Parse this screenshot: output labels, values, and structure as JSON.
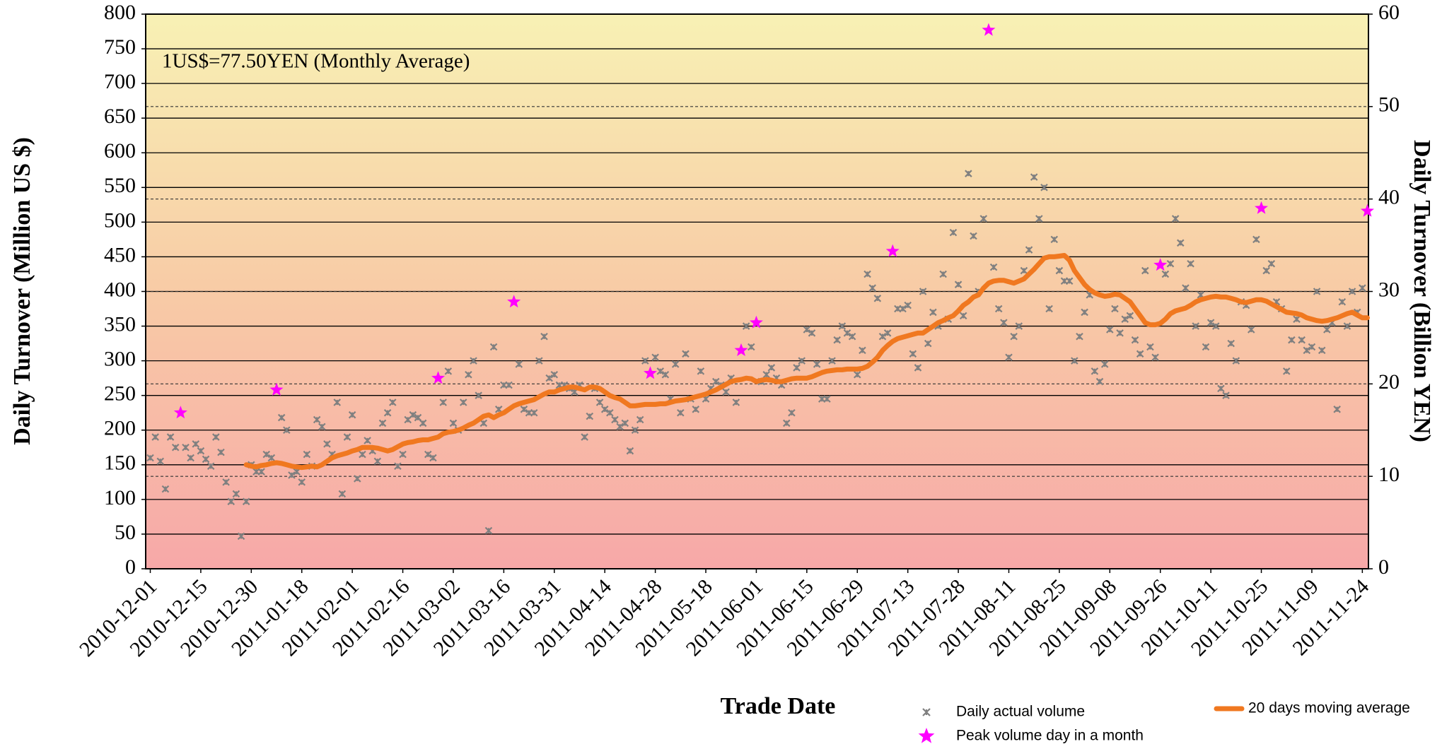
{
  "chart_data": {
    "type": "combo",
    "x_label": "Trade Date",
    "y_label": "Daily Turnover (Million US $)",
    "y2_label": "Daily Turnover (Billion YEN)",
    "annotation": "1US$=77.50YEN (Monthly Average)",
    "categories": [
      "2010-12-01",
      null,
      null,
      null,
      null,
      null,
      null,
      null,
      null,
      null,
      "2010-12-15",
      null,
      null,
      null,
      null,
      null,
      null,
      null,
      null,
      null,
      "2010-12-30",
      null,
      null,
      null,
      null,
      null,
      null,
      null,
      null,
      null,
      "2011-01-18",
      null,
      null,
      null,
      null,
      null,
      null,
      null,
      null,
      null,
      "2011-02-01",
      null,
      null,
      null,
      null,
      null,
      null,
      null,
      null,
      null,
      "2011-02-16",
      null,
      null,
      null,
      null,
      null,
      null,
      null,
      null,
      null,
      "2011-03-02",
      null,
      null,
      null,
      null,
      null,
      null,
      null,
      null,
      null,
      "2011-03-16",
      null,
      null,
      null,
      null,
      null,
      null,
      null,
      null,
      null,
      "2011-03-31",
      null,
      null,
      null,
      null,
      null,
      null,
      null,
      null,
      null,
      "2011-04-14",
      null,
      null,
      null,
      null,
      null,
      null,
      null,
      null,
      null,
      "2011-04-28",
      null,
      null,
      null,
      null,
      null,
      null,
      null,
      null,
      null,
      "2011-05-18",
      null,
      null,
      null,
      null,
      null,
      null,
      null,
      null,
      null,
      "2011-06-01",
      null,
      null,
      null,
      null,
      null,
      null,
      null,
      null,
      null,
      "2011-06-15",
      null,
      null,
      null,
      null,
      null,
      null,
      null,
      null,
      null,
      "2011-06-29",
      null,
      null,
      null,
      null,
      null,
      null,
      null,
      null,
      null,
      "2011-07-13",
      null,
      null,
      null,
      null,
      null,
      null,
      null,
      null,
      null,
      "2011-07-28",
      null,
      null,
      null,
      null,
      null,
      null,
      null,
      null,
      null,
      "2011-08-11",
      null,
      null,
      null,
      null,
      null,
      null,
      null,
      null,
      null,
      "2011-08-25",
      null,
      null,
      null,
      null,
      null,
      null,
      null,
      null,
      null,
      "2011-09-08",
      null,
      null,
      null,
      null,
      null,
      null,
      null,
      null,
      null,
      "2011-09-26",
      null,
      null,
      null,
      null,
      null,
      null,
      null,
      null,
      null,
      "2011-10-11",
      null,
      null,
      null,
      null,
      null,
      null,
      null,
      null,
      null,
      "2011-10-25",
      null,
      null,
      null,
      null,
      null,
      null,
      null,
      null,
      null,
      "2011-11-09",
      null,
      null,
      null,
      null,
      null,
      null,
      null,
      null,
      null,
      "2011-11-24",
      null
    ],
    "series": [
      {
        "name": "Daily actual volume",
        "type": "scatter",
        "marker": "cross",
        "color": "#808080",
        "values": [
          160,
          190,
          155,
          115,
          190,
          175,
          null,
          175,
          160,
          180,
          170,
          158,
          148,
          190,
          168,
          125,
          97,
          108,
          47,
          97,
          150,
          140,
          140,
          165,
          160,
          null,
          218,
          200,
          135,
          140,
          125,
          165,
          148,
          215,
          205,
          180,
          165,
          240,
          108,
          190,
          222,
          130,
          165,
          185,
          170,
          155,
          210,
          225,
          240,
          148,
          165,
          215,
          222,
          218,
          210,
          165,
          160,
          null,
          240,
          285,
          210,
          200,
          240,
          280,
          300,
          250,
          210,
          55,
          320,
          230,
          265,
          265,
          null,
          295,
          230,
          225,
          225,
          300,
          335,
          275,
          280,
          265,
          265,
          260,
          255,
          265,
          190,
          220,
          260,
          240,
          230,
          225,
          215,
          205,
          210,
          170,
          200,
          215,
          300,
          null,
          305,
          285,
          280,
          245,
          295,
          225,
          310,
          245,
          230,
          285,
          245,
          260,
          270,
          265,
          255,
          275,
          240,
          null,
          350,
          320,
          null,
          270,
          280,
          290,
          275,
          265,
          210,
          225,
          290,
          300,
          345,
          340,
          295,
          245,
          245,
          300,
          330,
          350,
          340,
          335,
          280,
          315,
          425,
          405,
          390,
          335,
          340,
          null,
          375,
          375,
          380,
          310,
          290,
          400,
          325,
          370,
          350,
          425,
          360,
          485,
          410,
          365,
          570,
          480,
          400,
          505,
          null,
          435,
          375,
          355,
          305,
          335,
          350,
          430,
          460,
          565,
          505,
          550,
          375,
          475,
          430,
          415,
          415,
          300,
          335,
          370,
          395,
          285,
          270,
          295,
          345,
          375,
          340,
          360,
          365,
          330,
          310,
          430,
          320,
          305,
          null,
          425,
          440,
          505,
          470,
          405,
          440,
          350,
          395,
          320,
          355,
          350,
          260,
          250,
          325,
          300,
          385,
          380,
          345,
          475,
          null,
          430,
          440,
          385,
          375,
          285,
          330,
          360,
          330,
          315,
          320,
          400,
          315,
          345,
          355,
          230,
          385,
          350,
          400,
          370,
          405,
          null
        ]
      },
      {
        "name": "Peak volume day in a month",
        "type": "scatter",
        "marker": "star",
        "color": "#ff00ff",
        "values": [
          null,
          null,
          null,
          null,
          null,
          null,
          225,
          null,
          null,
          null,
          null,
          null,
          null,
          null,
          null,
          null,
          null,
          null,
          null,
          null,
          null,
          null,
          null,
          null,
          null,
          258,
          null,
          null,
          null,
          null,
          null,
          null,
          null,
          null,
          null,
          null,
          null,
          null,
          null,
          null,
          null,
          null,
          null,
          null,
          null,
          null,
          null,
          null,
          null,
          null,
          null,
          null,
          null,
          null,
          null,
          null,
          null,
          275,
          null,
          null,
          null,
          null,
          null,
          null,
          null,
          null,
          null,
          null,
          null,
          null,
          null,
          null,
          385,
          null,
          null,
          null,
          null,
          null,
          null,
          null,
          null,
          null,
          null,
          null,
          null,
          null,
          null,
          null,
          null,
          null,
          null,
          null,
          null,
          null,
          null,
          null,
          null,
          null,
          null,
          282,
          null,
          null,
          null,
          null,
          null,
          null,
          null,
          null,
          null,
          null,
          null,
          null,
          null,
          null,
          null,
          null,
          null,
          315,
          null,
          null,
          355,
          null,
          null,
          null,
          null,
          null,
          null,
          null,
          null,
          null,
          null,
          null,
          null,
          null,
          null,
          null,
          null,
          null,
          null,
          null,
          null,
          null,
          null,
          null,
          null,
          null,
          null,
          458,
          null,
          null,
          null,
          null,
          null,
          null,
          null,
          null,
          null,
          null,
          null,
          null,
          null,
          null,
          null,
          null,
          null,
          null,
          777,
          null,
          null,
          null,
          null,
          null,
          null,
          null,
          null,
          null,
          null,
          null,
          null,
          null,
          null,
          null,
          null,
          null,
          null,
          null,
          null,
          null,
          null,
          null,
          null,
          null,
          null,
          null,
          null,
          null,
          null,
          null,
          null,
          null,
          438,
          null,
          null,
          null,
          null,
          null,
          null,
          null,
          null,
          null,
          null,
          null,
          null,
          null,
          null,
          null,
          null,
          null,
          null,
          null,
          520,
          null,
          null,
          null,
          null,
          null,
          null,
          null,
          null,
          null,
          null,
          null,
          null,
          null,
          null,
          null,
          null,
          null,
          null,
          null,
          null,
          516
        ]
      },
      {
        "name": "20 days moving average",
        "type": "line",
        "color": "#f07820",
        "values": [
          null,
          null,
          null,
          null,
          null,
          null,
          null,
          null,
          null,
          null,
          null,
          null,
          null,
          null,
          null,
          null,
          null,
          null,
          null,
          150,
          148,
          147,
          149,
          150,
          152,
          153,
          152,
          150,
          148,
          147,
          146,
          147,
          148,
          147,
          150,
          155,
          160,
          163,
          165,
          167,
          170,
          172,
          175,
          175,
          175,
          174,
          172,
          170,
          172,
          176,
          180,
          182,
          183,
          185,
          186,
          186,
          188,
          190,
          195,
          197,
          198,
          200,
          203,
          207,
          210,
          215,
          220,
          222,
          218,
          222,
          225,
          230,
          235,
          238,
          240,
          242,
          244,
          248,
          252,
          255,
          255,
          258,
          260,
          262,
          262,
          260,
          258,
          262,
          262,
          260,
          255,
          250,
          247,
          245,
          240,
          235,
          235,
          236,
          237,
          237,
          237,
          238,
          238,
          240,
          242,
          243,
          244,
          246,
          248,
          250,
          252,
          255,
          258,
          262,
          266,
          270,
          272,
          273,
          275,
          274,
          270,
          272,
          273,
          272,
          270,
          270,
          272,
          274,
          275,
          275,
          275,
          277,
          280,
          283,
          285,
          286,
          287,
          287,
          288,
          288,
          288,
          289,
          292,
          298,
          305,
          315,
          322,
          328,
          332,
          334,
          336,
          338,
          340,
          340,
          345,
          350,
          355,
          358,
          362,
          365,
          372,
          380,
          385,
          392,
          395,
          405,
          412,
          415,
          416,
          416,
          414,
          412,
          415,
          418,
          425,
          432,
          440,
          448,
          450,
          450,
          451,
          452,
          445,
          430,
          420,
          410,
          403,
          398,
          395,
          393,
          394,
          396,
          395,
          390,
          385,
          375,
          365,
          355,
          352,
          352,
          354,
          360,
          368,
          372,
          374,
          376,
          380,
          385,
          388,
          390,
          392,
          393,
          392,
          392,
          390,
          388,
          385,
          384,
          386,
          388,
          388,
          386,
          382,
          378,
          374,
          370,
          369,
          368,
          366,
          362,
          360,
          358,
          357,
          358,
          360,
          362,
          365,
          368,
          370,
          366,
          362,
          362
        ]
      }
    ],
    "ylim": [
      0,
      800
    ],
    "yticks": [
      0,
      50,
      100,
      150,
      200,
      250,
      300,
      350,
      400,
      450,
      500,
      550,
      600,
      650,
      700,
      750,
      800
    ],
    "y2lim": [
      0,
      60
    ],
    "y2ticks": [
      0,
      10,
      20,
      30,
      40,
      50,
      60
    ],
    "grid": true
  }
}
